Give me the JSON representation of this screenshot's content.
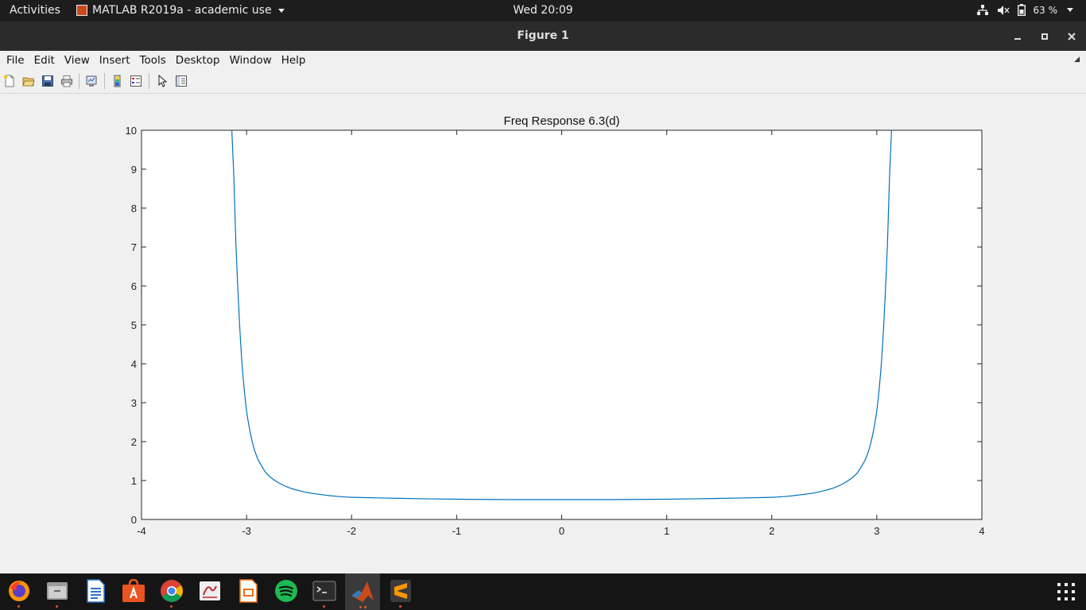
{
  "topbar": {
    "activities": "Activities",
    "app_name": "MATLAB R2019a - academic use",
    "clock": "Wed 20:09",
    "battery": "63 %"
  },
  "window": {
    "title": "Figure 1"
  },
  "menu": {
    "items": [
      "File",
      "Edit",
      "View",
      "Insert",
      "Tools",
      "Desktop",
      "Window",
      "Help"
    ]
  },
  "toolbar": {
    "icons": [
      "new-figure-icon",
      "open-file-icon",
      "save-icon",
      "print-icon",
      "link-plot-icon",
      "insert-colorbar-icon",
      "insert-legend-icon",
      "edit-plot-arrow-icon",
      "property-inspector-icon"
    ]
  },
  "chart_data": {
    "type": "line",
    "title": "Freq Response 6.3(d)",
    "xlabel": "",
    "ylabel": "",
    "xlim": [
      -4,
      4
    ],
    "ylim": [
      0,
      10
    ],
    "xticks": [
      -4,
      -3,
      -2,
      -1,
      0,
      1,
      2,
      3,
      4
    ],
    "yticks": [
      0,
      1,
      2,
      3,
      4,
      5,
      6,
      7,
      8,
      9,
      10
    ],
    "grid": false,
    "line_color": "#0072bd",
    "x": [
      -3.14,
      -3.12,
      -3.1,
      -3.07,
      -3.04,
      -3.0,
      -2.95,
      -2.9,
      -2.85,
      -2.8,
      -2.7,
      -2.6,
      -2.5,
      -2.4,
      -2.2,
      -2.0,
      -1.5,
      -1.0,
      -0.5,
      0.0,
      0.5,
      1.0,
      1.5,
      2.0,
      2.2,
      2.4,
      2.5,
      2.6,
      2.7,
      2.8,
      2.85,
      2.9,
      2.95,
      3.0,
      3.04,
      3.07,
      3.1,
      3.12,
      3.14
    ],
    "y": [
      10.0,
      8.7,
      7.0,
      5.2,
      3.9,
      2.8,
      2.05,
      1.6,
      1.35,
      1.15,
      0.95,
      0.82,
      0.74,
      0.68,
      0.61,
      0.57,
      0.54,
      0.52,
      0.51,
      0.51,
      0.51,
      0.52,
      0.54,
      0.57,
      0.61,
      0.68,
      0.74,
      0.82,
      0.95,
      1.15,
      1.35,
      1.6,
      2.05,
      2.8,
      3.9,
      5.2,
      7.0,
      8.7,
      10.0
    ]
  },
  "taskbar": {
    "apps": [
      "firefox-icon",
      "files-icon",
      "writer-icon",
      "software-center-icon",
      "chrome-icon",
      "document-viewer-icon",
      "impress-icon",
      "spotify-icon",
      "terminal-icon",
      "matlab-icon",
      "sublime-text-icon"
    ],
    "colors": {
      "orange": "#e95420",
      "matlab": "#c94a1b"
    }
  }
}
